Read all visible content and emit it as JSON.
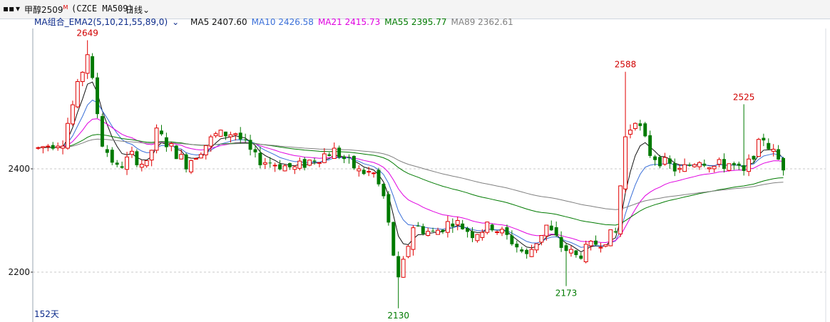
{
  "header": {
    "symbol_name": "甲醇2509",
    "symbol_sup": "M",
    "symbol_code": "(CZCE MA509)",
    "period": "日线",
    "period_chevron": "chevron-down-icon"
  },
  "legend": {
    "group_label": "MA组合_EMA2(5,10,21,55,89,0)",
    "items": [
      {
        "label": "MA5",
        "value": "2407.60",
        "color": "#111111"
      },
      {
        "label": "MA10",
        "value": "2426.58",
        "color": "#3a6fd8"
      },
      {
        "label": "MA21",
        "value": "2415.73",
        "color": "#e000e0"
      },
      {
        "label": "MA55",
        "value": "2395.77",
        "color": "#007a00"
      },
      {
        "label": "MA89",
        "value": "2362.61",
        "color": "#808080"
      }
    ]
  },
  "footer": {
    "days_label": "152天"
  },
  "chart_data": {
    "type": "candlestick",
    "y_ticks": [
      2200,
      2400
    ],
    "ylim": [
      2115,
      2655
    ],
    "grid": "dashed horizontal at tick levels",
    "annotations": [
      {
        "text": "2649",
        "index": 10,
        "value": 2649,
        "kind": "high"
      },
      {
        "text": "2130",
        "index": 73,
        "value": 2130,
        "kind": "low"
      },
      {
        "text": "2173",
        "index": 107,
        "value": 2173,
        "kind": "low"
      },
      {
        "text": "2588",
        "index": 119,
        "value": 2588,
        "kind": "high"
      },
      {
        "text": "2525",
        "index": 143,
        "value": 2525,
        "kind": "high"
      }
    ],
    "colors": {
      "up": "#e00000",
      "down": "#007a00"
    },
    "candles": []
  }
}
